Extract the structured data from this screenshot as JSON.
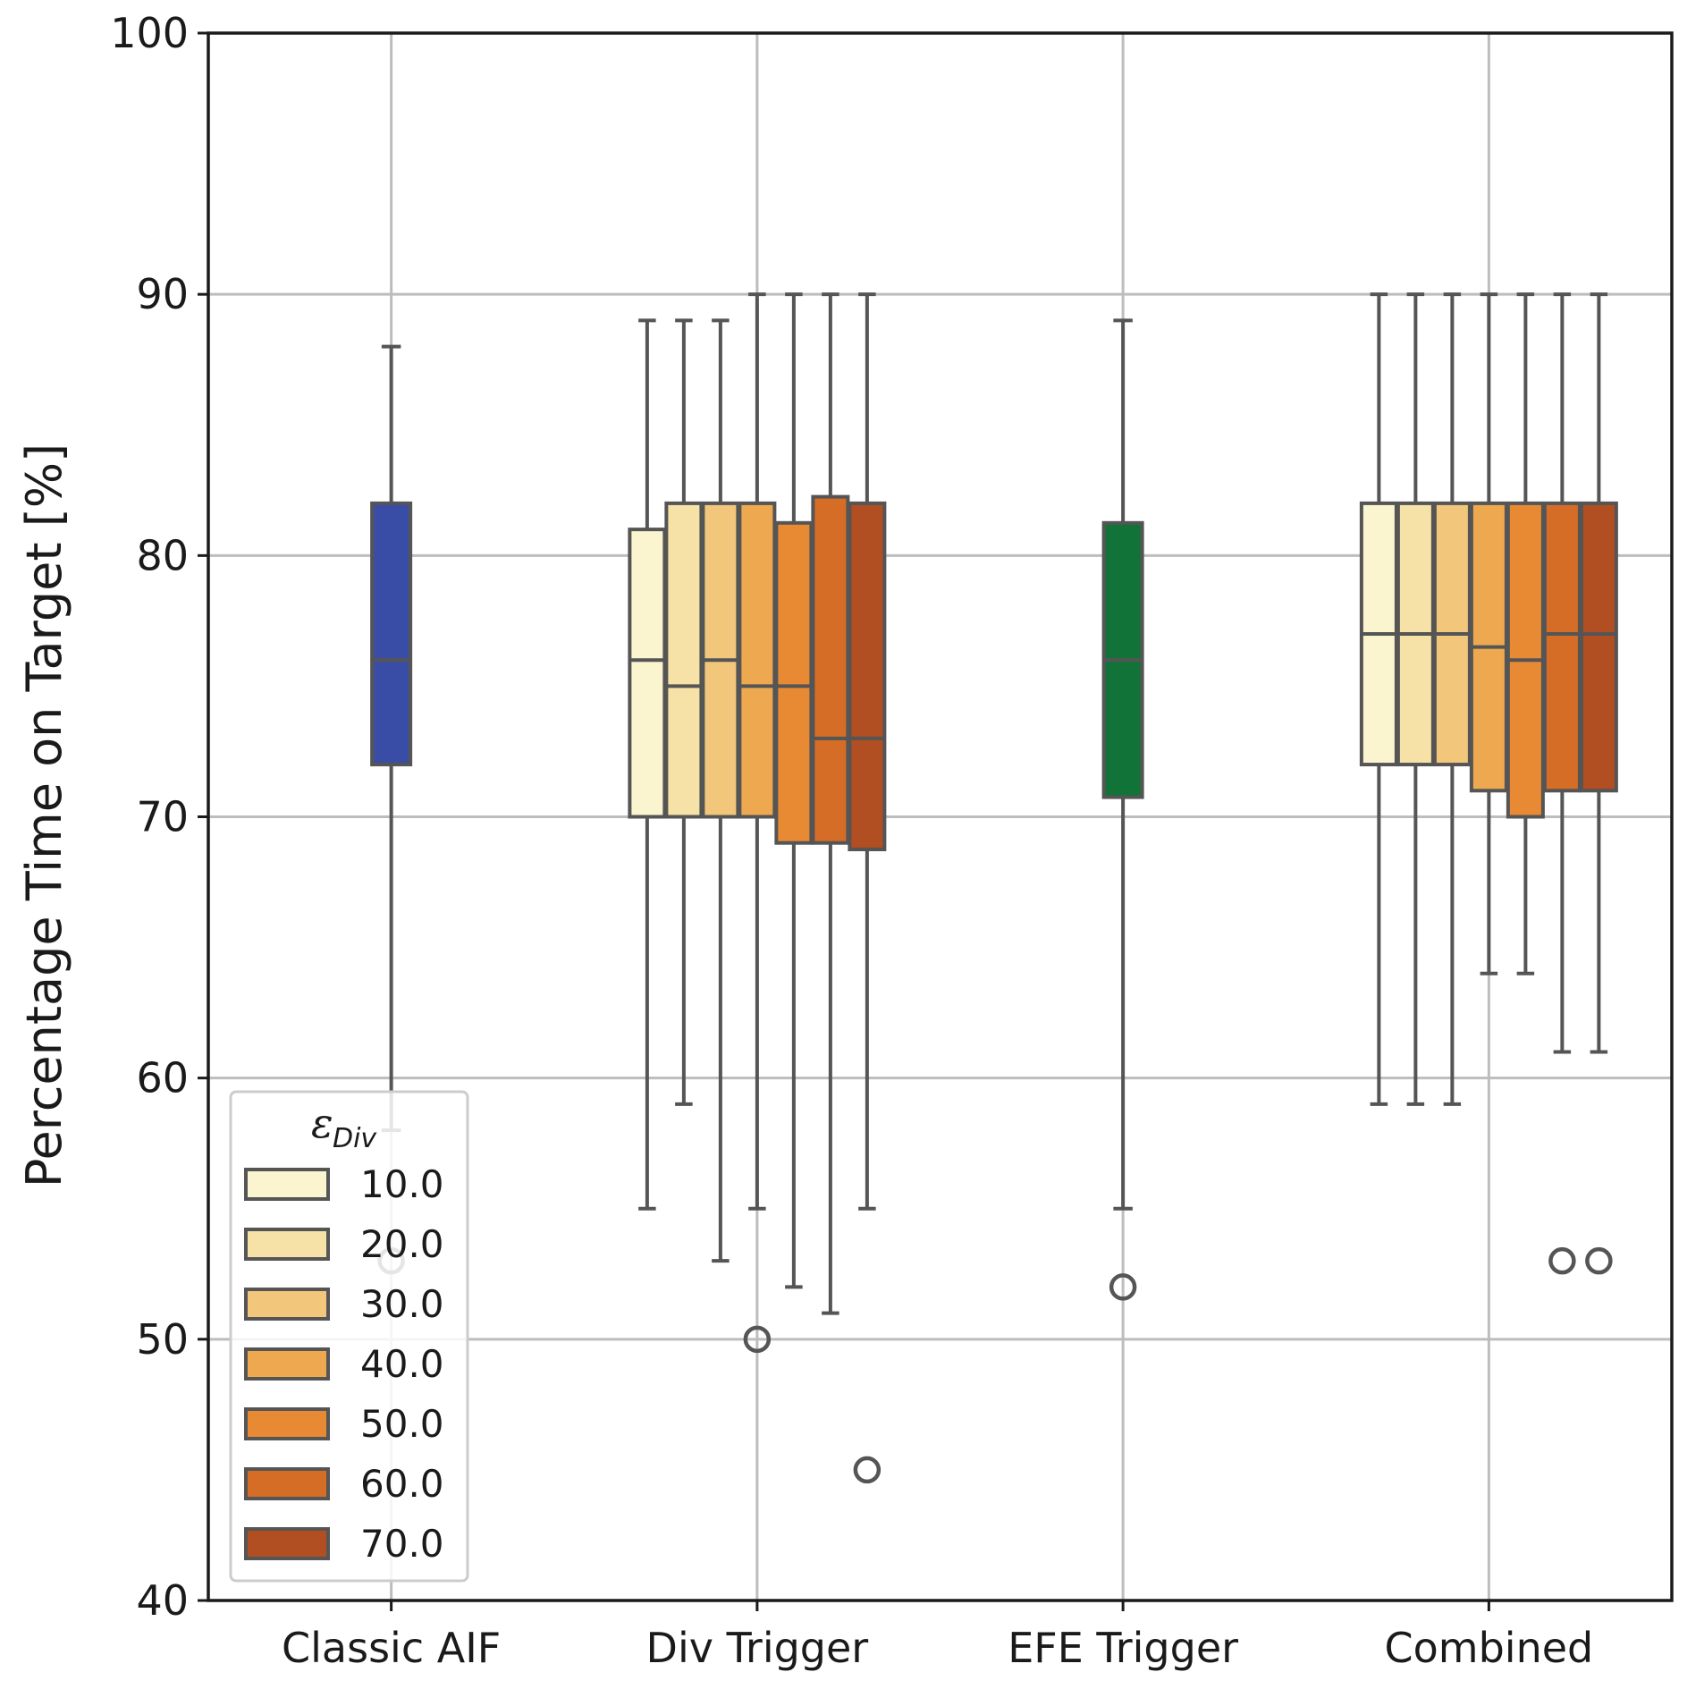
{
  "chart_data": {
    "type": "box",
    "ylabel": "Percentage Time on Target [%]",
    "xlabel": "",
    "ylim": [
      40,
      100
    ],
    "yticks": [
      40,
      50,
      60,
      70,
      80,
      90,
      100
    ],
    "grid": true,
    "categories": [
      "Classic AIF",
      "Div Trigger",
      "EFE Trigger",
      "Combined"
    ],
    "legend": {
      "title": "ε",
      "title_sub": "Div",
      "position": "lower-left",
      "entries": [
        {
          "label": "10.0",
          "color": "#fbf5cf"
        },
        {
          "label": "20.0",
          "color": "#f6e2a6"
        },
        {
          "label": "30.0",
          "color": "#f2c77c"
        },
        {
          "label": "40.0",
          "color": "#eea950"
        },
        {
          "label": "50.0",
          "color": "#e88a34"
        },
        {
          "label": "60.0",
          "color": "#d56d26"
        },
        {
          "label": "70.0",
          "color": "#b14e22"
        }
      ]
    },
    "colors": {
      "classic": "#3a4da6",
      "efe": "#127338",
      "box_edge": "#555555",
      "grid": "#bdbdbd",
      "axis": "#1a1a1a"
    },
    "groups": [
      {
        "category": "Classic AIF",
        "boxes": [
          {
            "series": "Classic AIF",
            "color": "#3a4da6",
            "whisker_low": 58,
            "q1": 72,
            "median": 76,
            "q3": 82,
            "whisker_high": 88,
            "outliers": [
              53
            ]
          }
        ]
      },
      {
        "category": "Div Trigger",
        "boxes": [
          {
            "series": "10.0",
            "color": "#fbf5cf",
            "whisker_low": 55,
            "q1": 70,
            "median": 76,
            "q3": 81,
            "whisker_high": 89,
            "outliers": []
          },
          {
            "series": "20.0",
            "color": "#f6e2a6",
            "whisker_low": 59,
            "q1": 70,
            "median": 75,
            "q3": 82,
            "whisker_high": 89,
            "outliers": []
          },
          {
            "series": "30.0",
            "color": "#f2c77c",
            "whisker_low": 53,
            "q1": 70,
            "median": 76,
            "q3": 82,
            "whisker_high": 89,
            "outliers": []
          },
          {
            "series": "40.0",
            "color": "#eea950",
            "whisker_low": 55,
            "q1": 70,
            "median": 75,
            "q3": 82,
            "whisker_high": 90,
            "outliers": [
              50
            ]
          },
          {
            "series": "50.0",
            "color": "#e88a34",
            "whisker_low": 52,
            "q1": 69,
            "median": 75,
            "q3": 81.25,
            "whisker_high": 90,
            "outliers": []
          },
          {
            "series": "60.0",
            "color": "#d56d26",
            "whisker_low": 51,
            "q1": 69,
            "median": 73,
            "q3": 82.25,
            "whisker_high": 90,
            "outliers": []
          },
          {
            "series": "70.0",
            "color": "#b14e22",
            "whisker_low": 55,
            "q1": 68.75,
            "median": 73,
            "q3": 82,
            "whisker_high": 90,
            "outliers": [
              45
            ]
          }
        ]
      },
      {
        "category": "EFE Trigger",
        "boxes": [
          {
            "series": "EFE Trigger",
            "color": "#127338",
            "whisker_low": 55,
            "q1": 70.75,
            "median": 76,
            "q3": 81.25,
            "whisker_high": 89,
            "outliers": [
              52
            ]
          }
        ]
      },
      {
        "category": "Combined",
        "boxes": [
          {
            "series": "10.0",
            "color": "#fbf5cf",
            "whisker_low": 59,
            "q1": 72,
            "median": 77,
            "q3": 82,
            "whisker_high": 90,
            "outliers": []
          },
          {
            "series": "20.0",
            "color": "#f6e2a6",
            "whisker_low": 59,
            "q1": 72,
            "median": 77,
            "q3": 82,
            "whisker_high": 90,
            "outliers": []
          },
          {
            "series": "30.0",
            "color": "#f2c77c",
            "whisker_low": 59,
            "q1": 72,
            "median": 77,
            "q3": 82,
            "whisker_high": 90,
            "outliers": []
          },
          {
            "series": "40.0",
            "color": "#eea950",
            "whisker_low": 64,
            "q1": 71,
            "median": 76.5,
            "q3": 82,
            "whisker_high": 90,
            "outliers": []
          },
          {
            "series": "50.0",
            "color": "#e88a34",
            "whisker_low": 64,
            "q1": 70,
            "median": 76,
            "q3": 82,
            "whisker_high": 90,
            "outliers": []
          },
          {
            "series": "60.0",
            "color": "#d56d26",
            "whisker_low": 61,
            "q1": 71,
            "median": 77,
            "q3": 82,
            "whisker_high": 90,
            "outliers": [
              53
            ]
          },
          {
            "series": "70.0",
            "color": "#b14e22",
            "whisker_low": 61,
            "q1": 71,
            "median": 77,
            "q3": 82,
            "whisker_high": 90,
            "outliers": [
              53
            ]
          }
        ]
      }
    ]
  }
}
